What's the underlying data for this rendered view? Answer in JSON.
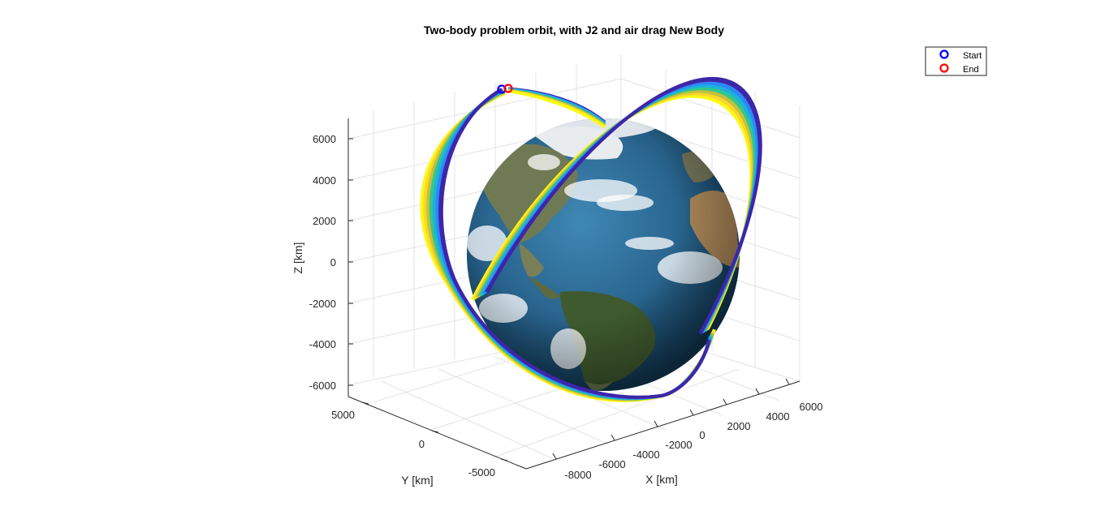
{
  "chart_data": {
    "type": "scatter",
    "subtype": "3d-orbit-trajectory",
    "title": "Two-body problem orbit, with J2 and air drag New Body",
    "xlabel": "X [km]",
    "ylabel": "Y [km]",
    "zlabel": "Z [km]",
    "x_ticks": [
      "-8000",
      "-6000",
      "-4000",
      "-2000",
      "0",
      "2000",
      "4000",
      "6000"
    ],
    "y_ticks": [
      "5000",
      "0",
      "-5000"
    ],
    "z_ticks": [
      "6000",
      "4000",
      "2000",
      "0",
      "-2000",
      "-4000",
      "-6000"
    ],
    "xlim": [
      -9000,
      7000
    ],
    "ylim": [
      -7000,
      7000
    ],
    "zlim": [
      -6800,
      7000
    ],
    "grid": true,
    "legend_position": "top-right",
    "legend": [
      {
        "label": "Start",
        "color": "#0000ff",
        "marker": "o"
      },
      {
        "label": "End",
        "color": "#ff0000",
        "marker": "o"
      }
    ],
    "surface": "Earth texture sphere",
    "colormap": [
      "#3e26a8",
      "#2e87f7",
      "#1ab3d9",
      "#35c789",
      "#c3c03c",
      "#fbd52c",
      "#f9fb0e"
    ]
  }
}
